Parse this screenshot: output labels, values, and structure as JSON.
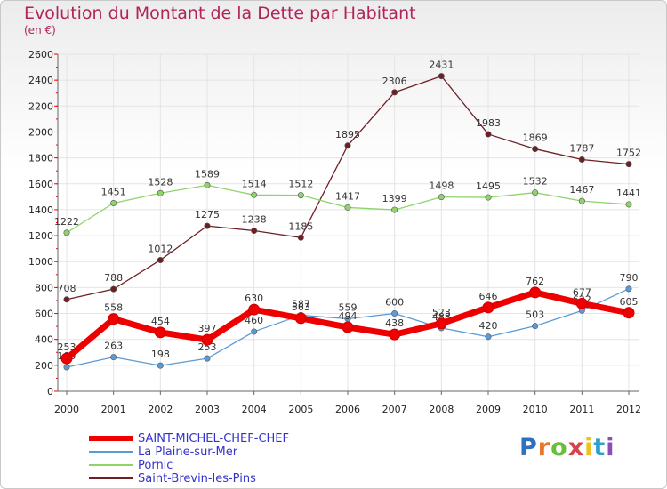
{
  "header": {
    "title": "Evolution du Montant de la Dette par Habitant",
    "subtitle": "(en €)"
  },
  "logo": {
    "text": "Proxiti",
    "colors": [
      "#2f6fc0",
      "#e8752a",
      "#6abf3a",
      "#d8434b",
      "#f0c020",
      "#2f9fd0",
      "#8a4fb0"
    ]
  },
  "chart_data": {
    "type": "line",
    "categories": [
      "2000",
      "2001",
      "2002",
      "2003",
      "2004",
      "2005",
      "2006",
      "2007",
      "2008",
      "2009",
      "2010",
      "2011",
      "2012"
    ],
    "ylim": [
      0,
      2600
    ],
    "yticks": [
      0,
      200,
      400,
      600,
      800,
      1000,
      1200,
      1400,
      1600,
      1800,
      2000,
      2200,
      2400,
      2600
    ],
    "grid": true,
    "legend_position": "bottom-left",
    "series": [
      {
        "name": "Saint-Brevin-les-Pins",
        "color": "#6e1f24",
        "values": [
          708,
          788,
          1012,
          1275,
          1238,
          1185,
          1895,
          2306,
          2431,
          1983,
          1869,
          1787,
          1752
        ]
      },
      {
        "name": "Pornic",
        "color": "#8fd46a",
        "values": [
          1222,
          1451,
          1528,
          1589,
          1514,
          1512,
          1417,
          1399,
          1498,
          1495,
          1532,
          1467,
          1441
        ]
      },
      {
        "name": "La Plaine-sur-Mer",
        "color": "#5b9bd5",
        "values": [
          185,
          263,
          198,
          253,
          460,
          587,
          559,
          600,
          488,
          420,
          503,
          622,
          790
        ]
      },
      {
        "name": "SAINT-MICHEL-CHEF-CHEF",
        "color": "#ee0000",
        "values": [
          253,
          558,
          454,
          397,
          630,
          563,
          494,
          438,
          523,
          646,
          762,
          677,
          605
        ]
      }
    ]
  },
  "legend": [
    {
      "label": "SAINT-MICHEL-CHEF-CHEF",
      "color": "#ee0000"
    },
    {
      "label": "La Plaine-sur-Mer",
      "color": "#5b9bd5"
    },
    {
      "label": "Pornic",
      "color": "#8fd46a"
    },
    {
      "label": "Saint-Brevin-les-Pins",
      "color": "#6e1f24"
    }
  ]
}
